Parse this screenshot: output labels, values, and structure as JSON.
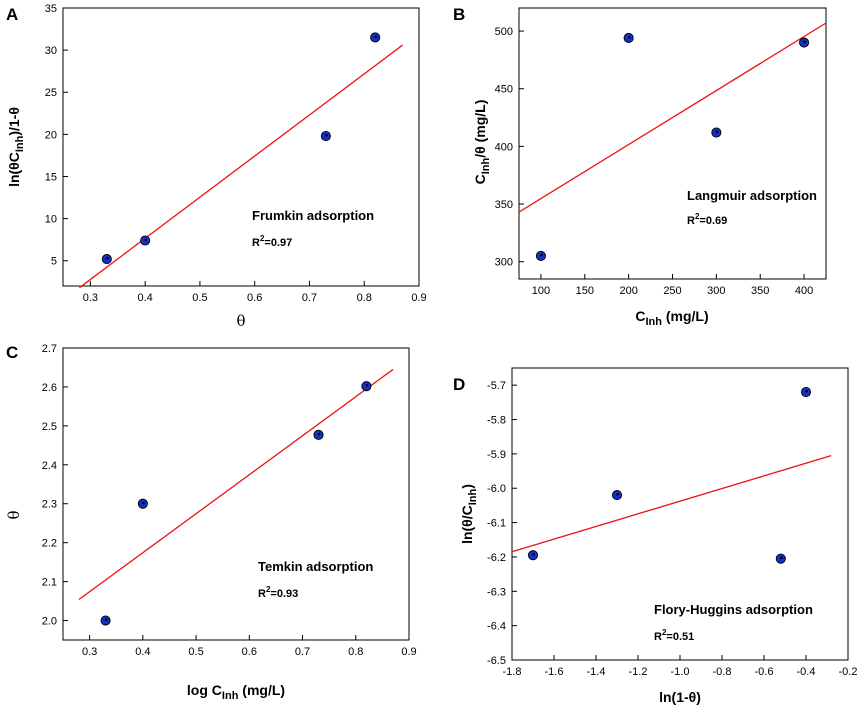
{
  "chart_data": [
    {
      "panel": "A",
      "type": "scatter",
      "title": "",
      "xlabel": "θ",
      "ylabel_parts": [
        "ln(θC",
        "Inh",
        ")/1-θ"
      ],
      "xlim": [
        0.25,
        0.9
      ],
      "ylim": [
        2,
        35
      ],
      "xticks": [
        0.3,
        0.4,
        0.5,
        0.6,
        0.7,
        0.8,
        0.9
      ],
      "xtick_labels": [
        "0.3",
        "0.4",
        "0.5",
        "0.6",
        "0.7",
        "0.8",
        "0.9"
      ],
      "yticks": [
        5,
        10,
        15,
        20,
        25,
        30,
        35
      ],
      "ytick_labels": [
        "5",
        "10",
        "15",
        "20",
        "25",
        "30",
        "35"
      ],
      "points": {
        "x": [
          0.33,
          0.4,
          0.73,
          0.82
        ],
        "y": [
          5.2,
          7.4,
          19.8,
          31.5
        ]
      },
      "fit_line": {
        "x": [
          0.28,
          0.87
        ],
        "y": [
          1.8,
          30.6
        ]
      },
      "annotation": "Frumkin adsorption",
      "r2": {
        "prefix": "R",
        "sup": "2",
        "suffix": "=0.97"
      }
    },
    {
      "panel": "B",
      "type": "scatter",
      "title": "",
      "xlabel_parts": [
        "C",
        "Inh",
        " (mg/L)"
      ],
      "ylabel_parts": [
        "C",
        "Inh",
        "/θ (mg/L)"
      ],
      "xlim": [
        75,
        425
      ],
      "ylim": [
        285,
        520
      ],
      "xticks": [
        100,
        150,
        200,
        250,
        300,
        350,
        400
      ],
      "xtick_labels": [
        "100",
        "150",
        "200",
        "250",
        "300",
        "350",
        "400"
      ],
      "yticks": [
        300,
        350,
        400,
        450,
        500
      ],
      "ytick_labels": [
        "300",
        "350",
        "400",
        "450",
        "500"
      ],
      "points": {
        "x": [
          100,
          200,
          300,
          400
        ],
        "y": [
          305,
          494,
          412,
          490
        ]
      },
      "fit_line": {
        "x": [
          75,
          425
        ],
        "y": [
          343,
          507
        ]
      },
      "annotation": "Langmuir adsorption",
      "r2": {
        "prefix": "R",
        "sup": "2",
        "suffix": "=0.69"
      }
    },
    {
      "panel": "C",
      "type": "scatter",
      "title": "",
      "xlabel_parts": [
        "log C",
        "Inh",
        " (mg/L)"
      ],
      "ylabel": "θ",
      "xlim": [
        0.25,
        0.9
      ],
      "ylim": [
        1.95,
        2.7
      ],
      "xticks": [
        0.3,
        0.4,
        0.5,
        0.6,
        0.7,
        0.8,
        0.9
      ],
      "xtick_labels": [
        "0.3",
        "0.4",
        "0.5",
        "0.6",
        "0.7",
        "0.8",
        "0.9"
      ],
      "yticks": [
        2.0,
        2.1,
        2.2,
        2.3,
        2.4,
        2.5,
        2.6,
        2.7
      ],
      "ytick_labels": [
        "2.0",
        "2.1",
        "2.2",
        "2.3",
        "2.4",
        "2.5",
        "2.6",
        "2.7"
      ],
      "points": {
        "x": [
          0.33,
          0.4,
          0.73,
          0.82
        ],
        "y": [
          2.0,
          2.3,
          2.477,
          2.602
        ]
      },
      "fit_line": {
        "x": [
          0.28,
          0.87
        ],
        "y": [
          2.054,
          2.645
        ]
      },
      "annotation": "Temkin adsorption",
      "r2": {
        "prefix": "R",
        "sup": "2",
        "suffix": "=0.93"
      }
    },
    {
      "panel": "D",
      "type": "scatter",
      "title": "",
      "xlabel": "ln(1-θ)",
      "ylabel_parts": [
        "ln(θ/C",
        "Inh",
        ")"
      ],
      "xlim": [
        -1.8,
        -0.2
      ],
      "ylim": [
        -6.5,
        -5.65
      ],
      "xticks": [
        -1.8,
        -1.6,
        -1.4,
        -1.2,
        -1.0,
        -0.8,
        -0.6,
        -0.4,
        -0.2
      ],
      "xtick_labels": [
        "-1.8",
        "-1.6",
        "-1.4",
        "-1.2",
        "-1.0",
        "-0.8",
        "-0.6",
        "-0.4",
        "-0.2"
      ],
      "yticks": [
        -6.5,
        -6.4,
        -6.3,
        -6.2,
        -6.1,
        -6.0,
        -5.9,
        -5.8,
        -5.7
      ],
      "ytick_labels": [
        "-6.5",
        "-6.4",
        "-6.3",
        "-6.2",
        "-6.1",
        "-6.0",
        "-5.9",
        "-5.8",
        "-5.7"
      ],
      "points": {
        "x": [
          -1.7,
          -1.3,
          -0.52,
          -0.4
        ],
        "y": [
          -6.195,
          -6.02,
          -6.205,
          -5.72
        ]
      },
      "fit_line": {
        "x": [
          -1.8,
          -0.28
        ],
        "y": [
          -6.185,
          -5.905
        ]
      },
      "annotation": "Flory-Huggins adsorption",
      "r2": {
        "prefix": "R",
        "sup": "2",
        "suffix": "=0.51"
      }
    }
  ],
  "colors": {
    "point_fill": "#1530c8",
    "point_edge": "#000000",
    "fit_line": "#ee1111",
    "axis": "#000000"
  }
}
